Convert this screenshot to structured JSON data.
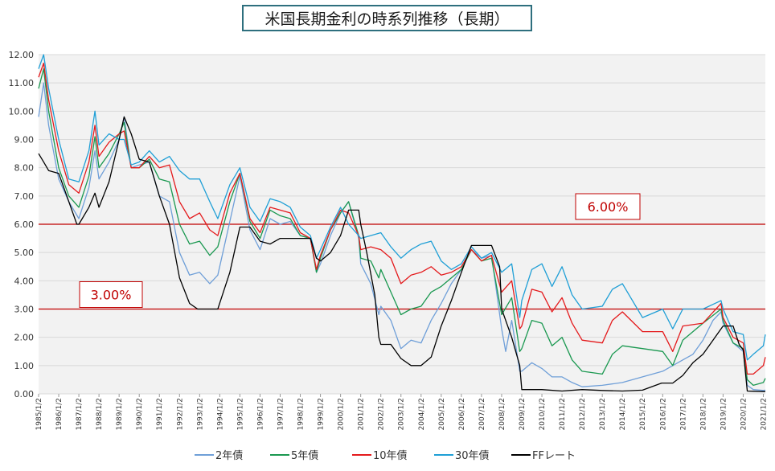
{
  "chart_data": {
    "type": "line",
    "title": "米国長期金利の時系列推移（長期）",
    "ylim": [
      0,
      12
    ],
    "y_ticks": [
      "0.00",
      "1.00",
      "2.00",
      "3.00",
      "4.00",
      "5.00",
      "6.00",
      "7.00",
      "8.00",
      "9.00",
      "10.00",
      "11.00",
      "12.00"
    ],
    "x_range": [
      1985.0,
      2021.1
    ],
    "x_ticks": [
      {
        "x": 1985,
        "label": "1985/1/2"
      },
      {
        "x": 1986,
        "label": "1986/1/2"
      },
      {
        "x": 1987,
        "label": "1987/1/2"
      },
      {
        "x": 1988,
        "label": "1988/1/2"
      },
      {
        "x": 1989,
        "label": "1989/1/2"
      },
      {
        "x": 1990,
        "label": "1990/1/2"
      },
      {
        "x": 1991,
        "label": "1991/1/2"
      },
      {
        "x": 1992,
        "label": "1992/1/2"
      },
      {
        "x": 1993,
        "label": "1993/1/2"
      },
      {
        "x": 1994,
        "label": "1994/1/2"
      },
      {
        "x": 1995,
        "label": "1995/1/2"
      },
      {
        "x": 1996,
        "label": "1996/1/2"
      },
      {
        "x": 1997,
        "label": "1997/1/2"
      },
      {
        "x": 1998,
        "label": "1998/1/2"
      },
      {
        "x": 1999,
        "label": "1999/1/2"
      },
      {
        "x": 2000,
        "label": "2000/1/2"
      },
      {
        "x": 2001,
        "label": "2001/1/2"
      },
      {
        "x": 2002,
        "label": "2002/1/2"
      },
      {
        "x": 2003,
        "label": "2003/1/2"
      },
      {
        "x": 2004,
        "label": "2004/1/2"
      },
      {
        "x": 2005,
        "label": "2005/1/2"
      },
      {
        "x": 2006,
        "label": "2006/1/2"
      },
      {
        "x": 2007,
        "label": "2007/1/2"
      },
      {
        "x": 2008,
        "label": "2008/1/2"
      },
      {
        "x": 2009,
        "label": "2009/1/2"
      },
      {
        "x": 2010,
        "label": "2010/1/2"
      },
      {
        "x": 2011,
        "label": "2011/1/2"
      },
      {
        "x": 2012,
        "label": "2012/1/2"
      },
      {
        "x": 2013,
        "label": "2013/1/2"
      },
      {
        "x": 2014,
        "label": "2014/1/2"
      },
      {
        "x": 2015,
        "label": "2015/1/2"
      },
      {
        "x": 2016,
        "label": "2016/1/2"
      },
      {
        "x": 2017,
        "label": "2017/1/2"
      },
      {
        "x": 2018,
        "label": "2018/1/2"
      },
      {
        "x": 2019,
        "label": "2019/1/2"
      },
      {
        "x": 2020,
        "label": "2020/1/2"
      },
      {
        "x": 2021,
        "label": "2021/1/2"
      }
    ],
    "legend_position": "bottom",
    "grid": true,
    "reference_lines": [
      {
        "y": 6.0,
        "label": "6.00%",
        "color": "#c00000"
      },
      {
        "y": 3.0,
        "label": "3.00%",
        "color": "#c00000"
      }
    ],
    "series": [
      {
        "name": "2年債",
        "color": "#6f9fd8",
        "x": [
          1985,
          1985.25,
          1985.5,
          1986,
          1986.5,
          1987,
          1987.5,
          1987.8,
          1988,
          1988.5,
          1989,
          1989.25,
          1989.6,
          1990,
          1990.5,
          1991,
          1991.5,
          1992,
          1992.5,
          1993,
          1993.5,
          1993.9,
          1994.5,
          1995,
          1995.5,
          1996,
          1996.5,
          1997,
          1997.5,
          1998,
          1998.5,
          1998.8,
          1999,
          1999.5,
          2000,
          2000.4,
          2000.9,
          2001,
          2001.5,
          2001.9,
          2002,
          2002.5,
          2003,
          2003.5,
          2004,
          2004.5,
          2005,
          2005.5,
          2006,
          2006.5,
          2007,
          2007.5,
          2008,
          2008.2,
          2008.5,
          2008.9,
          2009,
          2009.5,
          2010,
          2010.5,
          2011,
          2011.5,
          2012,
          2013,
          2014,
          2015,
          2016,
          2017,
          2017.5,
          2018,
          2018.5,
          2018.9,
          2019,
          2019.5,
          2020,
          2020.2,
          2020.5,
          2021,
          2021.1
        ],
        "y": [
          9.8,
          11.0,
          9.5,
          7.6,
          6.8,
          6.2,
          7.3,
          8.6,
          7.6,
          8.2,
          9.0,
          9.8,
          8.0,
          8.1,
          8.2,
          7.0,
          6.8,
          5.0,
          4.2,
          4.3,
          3.9,
          4.2,
          6.1,
          7.7,
          5.8,
          5.1,
          6.2,
          6.0,
          6.1,
          5.6,
          5.5,
          4.3,
          4.6,
          5.6,
          6.4,
          6.8,
          5.5,
          4.6,
          3.9,
          2.8,
          3.1,
          2.6,
          1.6,
          1.9,
          1.8,
          2.6,
          3.2,
          3.9,
          4.4,
          5.1,
          4.8,
          4.9,
          2.3,
          1.5,
          2.6,
          0.8,
          0.8,
          1.1,
          0.9,
          0.6,
          0.6,
          0.4,
          0.25,
          0.3,
          0.4,
          0.6,
          0.8,
          1.2,
          1.4,
          1.9,
          2.6,
          2.9,
          2.5,
          1.8,
          1.5,
          0.3,
          0.15,
          0.12,
          0.13
        ]
      },
      {
        "name": "5年債",
        "color": "#1a9850",
        "x": [
          1985,
          1985.25,
          1985.5,
          1986,
          1986.5,
          1987,
          1987.5,
          1987.8,
          1988,
          1988.5,
          1989,
          1989.25,
          1989.6,
          1990,
          1990.5,
          1991,
          1991.5,
          1992,
          1992.5,
          1993,
          1993.5,
          1993.9,
          1994.5,
          1995,
          1995.5,
          1996,
          1996.5,
          1997,
          1997.5,
          1998,
          1998.5,
          1998.8,
          1999,
          1999.5,
          2000,
          2000.4,
          2000.9,
          2001,
          2001.5,
          2001.9,
          2002,
          2002.5,
          2003,
          2003.5,
          2004,
          2004.5,
          2005,
          2005.5,
          2006,
          2006.5,
          2007,
          2007.5,
          2008,
          2008.5,
          2008.9,
          2009,
          2009.5,
          2010,
          2010.5,
          2011,
          2011.5,
          2012,
          2013,
          2013.5,
          2014,
          2015,
          2016,
          2016.5,
          2017,
          2018,
          2018.9,
          2019,
          2019.5,
          2020,
          2020.2,
          2020.5,
          2021,
          2021.1
        ],
        "y": [
          10.8,
          11.5,
          10.0,
          8.0,
          7.0,
          6.6,
          7.7,
          9.1,
          8.0,
          8.5,
          9.2,
          9.6,
          8.0,
          8.0,
          8.3,
          7.6,
          7.5,
          6.0,
          5.3,
          5.4,
          4.9,
          5.2,
          6.8,
          7.8,
          6.1,
          5.5,
          6.5,
          6.3,
          6.2,
          5.6,
          5.5,
          4.3,
          4.8,
          5.8,
          6.4,
          6.8,
          5.6,
          4.8,
          4.7,
          4.1,
          4.4,
          3.6,
          2.8,
          3.0,
          3.1,
          3.6,
          3.8,
          4.1,
          4.4,
          5.1,
          4.7,
          4.8,
          2.8,
          3.4,
          1.5,
          1.6,
          2.6,
          2.5,
          1.7,
          2.0,
          1.2,
          0.8,
          0.7,
          1.4,
          1.7,
          1.6,
          1.5,
          1.0,
          1.9,
          2.5,
          3.0,
          2.6,
          1.8,
          1.6,
          0.5,
          0.3,
          0.4,
          0.55
        ]
      },
      {
        "name": "10年債",
        "color": "#e41a1c",
        "x": [
          1985,
          1985.25,
          1985.5,
          1986,
          1986.5,
          1987,
          1987.5,
          1987.8,
          1988,
          1988.5,
          1989,
          1989.25,
          1989.6,
          1990,
          1990.5,
          1991,
          1991.5,
          1992,
          1992.5,
          1993,
          1993.5,
          1993.9,
          1994.5,
          1995,
          1995.5,
          1996,
          1996.5,
          1997,
          1997.5,
          1998,
          1998.5,
          1998.8,
          1999,
          1999.5,
          2000,
          2000.4,
          2000.9,
          2001,
          2001.5,
          2002,
          2002.5,
          2003,
          2003.5,
          2004,
          2004.5,
          2005,
          2005.5,
          2006,
          2006.5,
          2007,
          2007.5,
          2008,
          2008.5,
          2008.9,
          2009,
          2009.5,
          2010,
          2010.5,
          2011,
          2011.5,
          2012,
          2013,
          2013.5,
          2014,
          2015,
          2016,
          2016.5,
          2017,
          2018,
          2018.9,
          2019,
          2019.5,
          2020,
          2020.2,
          2020.5,
          2021,
          2021.1
        ],
        "y": [
          11.2,
          11.7,
          10.4,
          8.6,
          7.4,
          7.1,
          8.2,
          9.5,
          8.4,
          8.9,
          9.2,
          9.3,
          8.0,
          8.0,
          8.4,
          8.0,
          8.1,
          6.8,
          6.2,
          6.4,
          5.8,
          5.6,
          7.1,
          7.8,
          6.2,
          5.7,
          6.6,
          6.5,
          6.4,
          5.7,
          5.5,
          4.4,
          4.9,
          5.8,
          6.5,
          6.4,
          5.6,
          5.1,
          5.2,
          5.1,
          4.8,
          3.9,
          4.2,
          4.3,
          4.5,
          4.2,
          4.3,
          4.5,
          5.1,
          4.7,
          4.9,
          3.6,
          4.0,
          2.3,
          2.4,
          3.7,
          3.6,
          2.9,
          3.4,
          2.5,
          1.9,
          1.8,
          2.6,
          2.9,
          2.2,
          2.2,
          1.5,
          2.4,
          2.5,
          3.2,
          2.7,
          2.0,
          1.8,
          0.7,
          0.7,
          1.0,
          1.3
        ]
      },
      {
        "name": "30年債",
        "color": "#1f9fd6",
        "x": [
          1985,
          1985.25,
          1985.5,
          1986,
          1986.5,
          1987,
          1987.5,
          1987.8,
          1988,
          1988.5,
          1989,
          1989.25,
          1989.6,
          1990,
          1990.5,
          1991,
          1991.5,
          1992,
          1992.5,
          1993,
          1993.5,
          1993.9,
          1994.5,
          1995,
          1995.5,
          1996,
          1996.5,
          1997,
          1997.5,
          1998,
          1998.5,
          1998.8,
          1999,
          1999.5,
          2000,
          2000.4,
          2000.9,
          2001,
          2001.5,
          2002,
          2002.5,
          2003,
          2003.5,
          2004,
          2004.5,
          2005,
          2005.5,
          2006,
          2006.5,
          2007,
          2007.5,
          2008,
          2008.5,
          2008.9,
          2009,
          2009.5,
          2010,
          2010.5,
          2011,
          2011.5,
          2012,
          2013,
          2013.5,
          2014,
          2015,
          2016,
          2016.5,
          2017,
          2018,
          2018.9,
          2019,
          2019.5,
          2020,
          2020.2,
          2020.5,
          2021,
          2021.1
        ],
        "y": [
          11.5,
          12.0,
          10.8,
          9.0,
          7.6,
          7.5,
          8.6,
          10.0,
          8.8,
          9.2,
          9.0,
          9.0,
          8.1,
          8.2,
          8.6,
          8.2,
          8.4,
          7.9,
          7.6,
          7.6,
          6.8,
          6.2,
          7.4,
          8.0,
          6.6,
          6.1,
          6.9,
          6.8,
          6.6,
          5.9,
          5.6,
          4.8,
          5.1,
          5.9,
          6.6,
          6.0,
          5.6,
          5.5,
          5.6,
          5.7,
          5.2,
          4.8,
          5.1,
          5.3,
          5.4,
          4.7,
          4.4,
          4.6,
          5.2,
          4.8,
          5.0,
          4.3,
          4.6,
          2.7,
          3.3,
          4.4,
          4.6,
          3.8,
          4.5,
          3.5,
          3.0,
          3.1,
          3.7,
          3.9,
          2.7,
          3.0,
          2.3,
          3.0,
          3.0,
          3.3,
          3.0,
          2.2,
          2.1,
          1.2,
          1.4,
          1.7,
          2.1
        ]
      },
      {
        "name": "FFレート",
        "color": "#000000",
        "x": [
          1985,
          1985.25,
          1985.5,
          1986,
          1986.4,
          1986.9,
          1987,
          1987.5,
          1987.8,
          1988,
          1988.5,
          1989,
          1989.25,
          1989.6,
          1990,
          1990.5,
          1991,
          1991.5,
          1992,
          1992.5,
          1992.9,
          1993.5,
          1993.9,
          1994.5,
          1995,
          1995.5,
          1996,
          1996.5,
          1997,
          1997.5,
          1998,
          1998.5,
          1998.8,
          1999,
          1999.5,
          2000,
          2000.4,
          2000.9,
          2001,
          2001.3,
          2001.7,
          2001.9,
          2002,
          2002.5,
          2003,
          2003.5,
          2004,
          2004.5,
          2005,
          2005.5,
          2006,
          2006.5,
          2007,
          2007.5,
          2007.9,
          2008,
          2008.5,
          2008.9,
          2009,
          2010,
          2011,
          2012,
          2013,
          2014,
          2015,
          2015.95,
          2016.5,
          2017,
          2017.5,
          2018,
          2018.5,
          2019,
          2019.5,
          2019.8,
          2020,
          2020.2,
          2020.5,
          2021,
          2021.1
        ],
        "y": [
          8.5,
          8.2,
          7.9,
          7.8,
          7.0,
          6.0,
          6.0,
          6.6,
          7.1,
          6.6,
          7.5,
          9.0,
          9.8,
          9.2,
          8.3,
          8.2,
          7.0,
          6.0,
          4.1,
          3.2,
          3.0,
          3.0,
          3.0,
          4.3,
          5.9,
          5.9,
          5.4,
          5.3,
          5.5,
          5.5,
          5.5,
          5.5,
          4.8,
          4.7,
          5.0,
          5.6,
          6.5,
          6.5,
          6.0,
          5.0,
          3.5,
          2.0,
          1.75,
          1.75,
          1.25,
          1.0,
          1.0,
          1.3,
          2.4,
          3.3,
          4.3,
          5.25,
          5.25,
          5.25,
          4.5,
          3.0,
          2.0,
          1.0,
          0.15,
          0.15,
          0.1,
          0.15,
          0.12,
          0.1,
          0.13,
          0.38,
          0.38,
          0.65,
          1.1,
          1.4,
          1.9,
          2.4,
          2.4,
          1.75,
          1.55,
          0.1,
          0.09,
          0.08,
          0.08
        ]
      }
    ]
  }
}
